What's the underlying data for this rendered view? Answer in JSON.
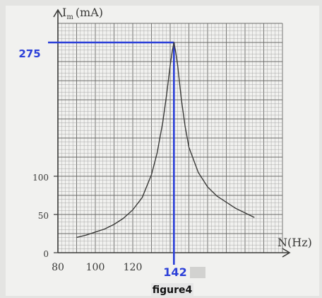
{
  "chart_data": {
    "type": "line",
    "title": "figure4",
    "ylabel": "I",
    "ylabel_sub": "m",
    "ylabel_unit": "(mA)",
    "xlabel": "N(Hz)",
    "xlim": [
      80,
      200
    ],
    "ylim": [
      0,
      300
    ],
    "x_ticks": [
      "80",
      "100",
      "120"
    ],
    "y_ticks": [
      "0",
      "50",
      "100"
    ],
    "grid": true,
    "annotations": {
      "peak_x_label": "142",
      "peak_y_label": "275",
      "peak_x": 142,
      "peak_y": 275
    },
    "series": [
      {
        "x": [
          90,
          95,
          100,
          105,
          110,
          115,
          120,
          125,
          130,
          133,
          136,
          138,
          140,
          141,
          142,
          143,
          144,
          146,
          148,
          150,
          155,
          160,
          165,
          170,
          175,
          180,
          185
        ],
        "y": [
          20,
          23,
          27,
          31,
          37,
          45,
          56,
          72,
          102,
          130,
          170,
          205,
          245,
          262,
          275,
          262,
          245,
          200,
          165,
          138,
          105,
          86,
          74,
          66,
          58,
          52,
          46
        ]
      }
    ]
  },
  "colors": {
    "paper": "#f1f1ef",
    "grid_minor": "#a2a2a0",
    "grid_major": "#6a6a68",
    "ink": "#3a3a38",
    "annotation": "#2b3fd8"
  }
}
